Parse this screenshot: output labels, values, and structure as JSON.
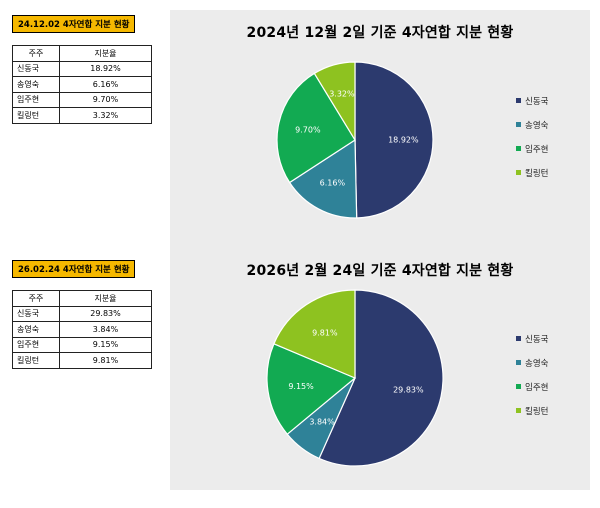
{
  "tables": [
    {
      "tag": "24.12.02  4자연합 지분 현황",
      "headers": [
        "주주",
        "지분율"
      ],
      "rows": [
        {
          "name": "신동국",
          "value": "18.92%"
        },
        {
          "name": "송영숙",
          "value": "6.16%"
        },
        {
          "name": "임주현",
          "value": "9.70%"
        },
        {
          "name": "킬링턴",
          "value": "3.32%"
        }
      ]
    },
    {
      "tag": "26.02.24  4자연합 지분 현황",
      "headers": [
        "주주",
        "지분율"
      ],
      "rows": [
        {
          "name": "신동국",
          "value": "29.83%"
        },
        {
          "name": "송영숙",
          "value": "3.84%"
        },
        {
          "name": "임주현",
          "value": "9.15%"
        },
        {
          "name": "킬링턴",
          "value": "9.81%"
        }
      ]
    }
  ],
  "chart_data": [
    {
      "type": "pie",
      "title": "2024년  12월  2일  기준  4자연합  지분  현황",
      "categories": [
        "신동국",
        "송영숙",
        "임주현",
        "킬링턴"
      ],
      "values": [
        18.92,
        6.16,
        9.7,
        3.32
      ],
      "labels": [
        "18.92%",
        "6.16%",
        "9.70%",
        "3.32%"
      ],
      "colors": [
        "#2c3a6e",
        "#2f8298",
        "#12aa52",
        "#8ec220"
      ],
      "legend_position": "right"
    },
    {
      "type": "pie",
      "title": "2026년  2월  24일  기준  4자연합  지분  현황",
      "categories": [
        "신동국",
        "송영숙",
        "임주현",
        "킬링턴"
      ],
      "values": [
        29.83,
        3.84,
        9.15,
        9.81
      ],
      "labels": [
        "29.83%",
        "3.84%",
        "9.15%",
        "9.81%"
      ],
      "colors": [
        "#2c3a6e",
        "#2f8298",
        "#12aa52",
        "#8ec220"
      ],
      "legend_position": "right"
    }
  ]
}
